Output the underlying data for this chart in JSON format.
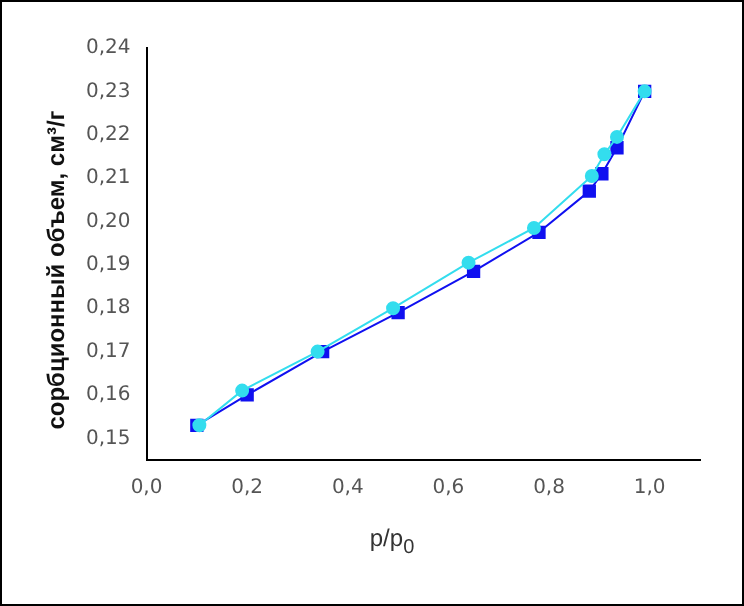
{
  "chart_data": {
    "type": "line",
    "xlabel": "p/p$_{0}$",
    "ylabel": "сорбционный объем, см³/г",
    "xlim": [
      0,
      1.1
    ],
    "ylim": [
      0.145,
      0.24
    ],
    "xticks": [
      {
        "value": 0,
        "label": "0,0"
      },
      {
        "value": 0.2,
        "label": "0,2"
      },
      {
        "value": 0.4,
        "label": "0,4"
      },
      {
        "value": 0.6,
        "label": "0,6"
      },
      {
        "value": 0.8,
        "label": "0,8"
      },
      {
        "value": 1,
        "label": "1,0"
      }
    ],
    "yticks": [
      {
        "value": 0.15,
        "label": "0,15"
      },
      {
        "value": 0.16,
        "label": "0,16"
      },
      {
        "value": 0.17,
        "label": "0,17"
      },
      {
        "value": 0.18,
        "label": "0,18"
      },
      {
        "value": 0.19,
        "label": "0,19"
      },
      {
        "value": 0.2,
        "label": "0,20"
      },
      {
        "value": 0.21,
        "label": "0,21"
      },
      {
        "value": 0.22,
        "label": "0,22"
      },
      {
        "value": 0.23,
        "label": "0,23"
      },
      {
        "value": 0.24,
        "label": "0,24"
      }
    ],
    "grid": false,
    "legend": false,
    "line_style": "solid",
    "series": [
      {
        "color": "#1010f0",
        "marker": "square",
        "x": [
          0.1,
          0.2,
          0.35,
          0.5,
          0.65,
          0.78,
          0.88,
          0.905,
          0.935,
          0.99
        ],
        "values": [
          0.153,
          0.16,
          0.17,
          0.179,
          0.1885,
          0.1975,
          0.207,
          0.211,
          0.217,
          0.23
        ]
      },
      {
        "color": "#33ddee",
        "marker": "circle",
        "x": [
          0.105,
          0.19,
          0.34,
          0.49,
          0.64,
          0.77,
          0.885,
          0.91,
          0.935,
          0.99
        ],
        "values": [
          0.153,
          0.161,
          0.17,
          0.18,
          0.1905,
          0.1985,
          0.2105,
          0.2155,
          0.2195,
          0.23
        ]
      }
    ]
  }
}
